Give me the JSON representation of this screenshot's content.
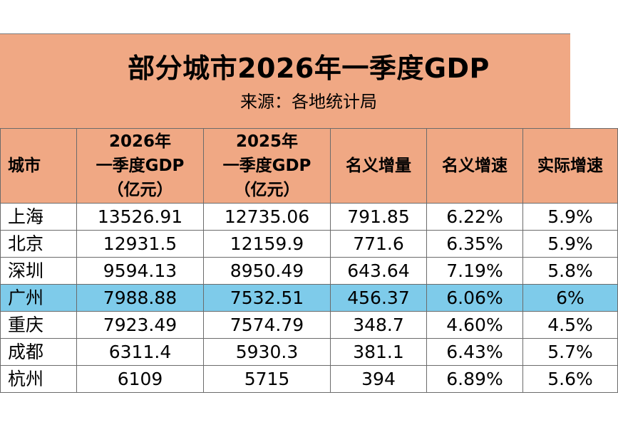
{
  "title": "部分城市2026年一季度GDP",
  "subtitle": "来源：各地统计局",
  "headers": {
    "city": "城市",
    "gdp2026": [
      "2026年",
      "一季度GDP",
      "（亿元）"
    ],
    "gdp2025": [
      "2025年",
      "一季度GDP",
      "（亿元）"
    ],
    "nominal_increase": "名义增量",
    "nominal_growth": "名义增速",
    "real_growth": "实际增速"
  },
  "rows": [
    {
      "city": "上海",
      "gdp2026": "13526.91",
      "gdp2025": "12735.06",
      "increase": "791.85",
      "nominal": "6.22%",
      "real": "5.9%",
      "highlight": false
    },
    {
      "city": "北京",
      "gdp2026": "12931.5",
      "gdp2025": "12159.9",
      "increase": "771.6",
      "nominal": "6.35%",
      "real": "5.9%",
      "highlight": false
    },
    {
      "city": "深圳",
      "gdp2026": "9594.13",
      "gdp2025": "8950.49",
      "increase": "643.64",
      "nominal": "7.19%",
      "real": "5.8%",
      "highlight": false
    },
    {
      "city": "广州",
      "gdp2026": "7988.88",
      "gdp2025": "7532.51",
      "increase": "456.37",
      "nominal": "6.06%",
      "real": "6%",
      "highlight": true
    },
    {
      "city": "重庆",
      "gdp2026": "7923.49",
      "gdp2025": "7574.79",
      "increase": "348.7",
      "nominal": "4.60%",
      "real": "4.5%",
      "highlight": false
    },
    {
      "city": "成都",
      "gdp2026": "6311.4",
      "gdp2025": "5930.3",
      "increase": "381.1",
      "nominal": "6.43%",
      "real": "5.7%",
      "highlight": false
    },
    {
      "city": "杭州",
      "gdp2026": "6109",
      "gdp2025": "5715",
      "increase": "394",
      "nominal": "6.89%",
      "real": "5.6%",
      "highlight": false
    }
  ],
  "colors": {
    "header_bg": "#f0a884",
    "highlight_row": "#7ecbea",
    "border": "#6b6b6b"
  }
}
